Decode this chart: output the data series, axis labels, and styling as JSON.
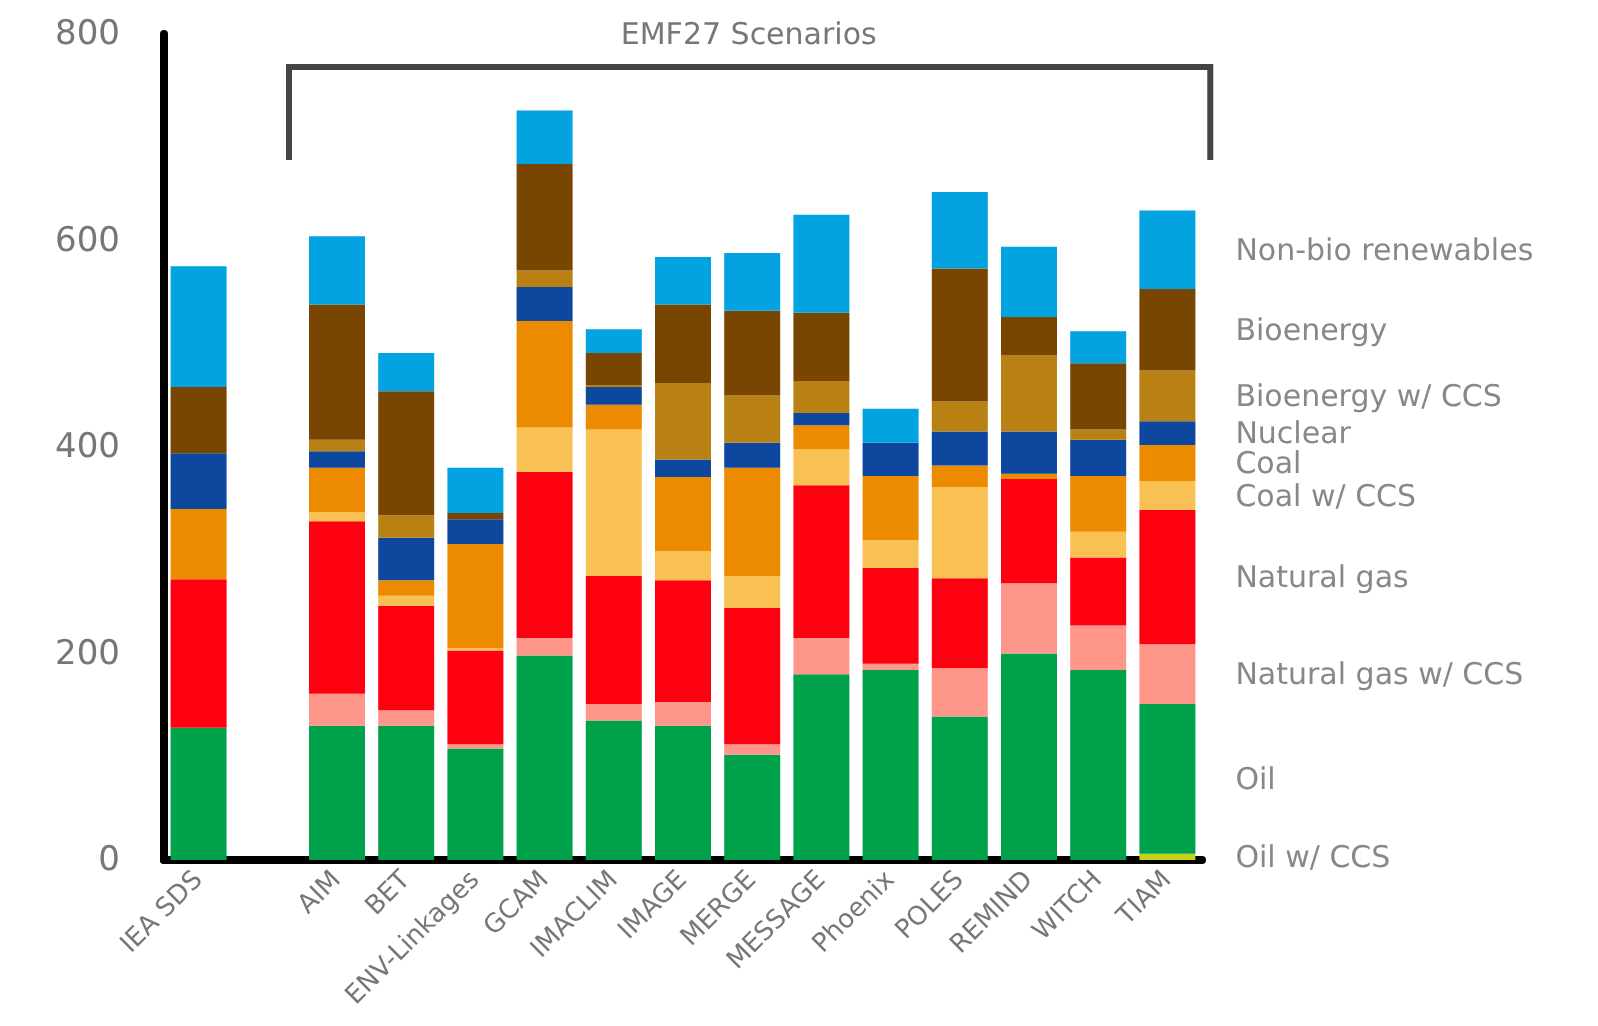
{
  "chart_data": {
    "type": "bar",
    "stacked": true,
    "categories": [
      "IEA SDS",
      null,
      "AIM",
      "BET",
      "ENV-Linkages",
      "GCAM",
      "IMACLIM",
      "IMAGE",
      "MERGE",
      "MESSAGE",
      "Phoenix",
      "POLES",
      "REMIND",
      "WITCH",
      "TIAM"
    ],
    "series": [
      {
        "name": "Oil w/ CCS",
        "color": "#c5d21a",
        "values": [
          0,
          null,
          0,
          0,
          0,
          0,
          0,
          0,
          0,
          0,
          0,
          0,
          0,
          0,
          6
        ]
      },
      {
        "name": "Oil",
        "color": "#00a14b",
        "values": [
          128,
          null,
          130,
          130,
          108,
          198,
          135,
          130,
          102,
          180,
          184,
          139,
          200,
          184,
          145
        ]
      },
      {
        "name": "Natural gas w/ CCS",
        "color": "#ff968a",
        "values": [
          0,
          null,
          31,
          15,
          4,
          17,
          16,
          23,
          10,
          35,
          6,
          47,
          68,
          43,
          58
        ]
      },
      {
        "name": "Natural gas",
        "color": "#ff0010",
        "values": [
          144,
          null,
          167,
          101,
          91,
          161,
          124,
          118,
          132,
          148,
          93,
          87,
          101,
          66,
          130
        ]
      },
      {
        "name": "Coal w/ CCS",
        "color": "#f9c053",
        "values": [
          0,
          null,
          9,
          10,
          2,
          43,
          142,
          28,
          31,
          35,
          27,
          88,
          0,
          25,
          28
        ]
      },
      {
        "name": "Coal",
        "color": "#ec8a00",
        "values": [
          68,
          null,
          43,
          15,
          101,
          103,
          24,
          72,
          105,
          23,
          62,
          21,
          5,
          54,
          35
        ]
      },
      {
        "name": "Nuclear",
        "color": "#0e479e",
        "values": [
          54,
          null,
          16,
          41,
          24,
          33,
          17,
          17,
          24,
          12,
          32,
          33,
          41,
          35,
          23
        ]
      },
      {
        "name": "Bioenergy w/ CCS",
        "color": "#b98013",
        "values": [
          0,
          null,
          11,
          22,
          0,
          16,
          2,
          74,
          46,
          31,
          0,
          29,
          74,
          10,
          49
        ]
      },
      {
        "name": "Bioenergy",
        "color": "#784600",
        "values": [
          64,
          null,
          131,
          120,
          6,
          103,
          31,
          76,
          82,
          66,
          0,
          129,
          37,
          64,
          79
        ]
      },
      {
        "name": "Non-bio renewables",
        "color": "#03a3e1",
        "values": [
          117,
          null,
          66,
          37,
          44,
          52,
          23,
          46,
          56,
          95,
          33,
          74,
          68,
          31,
          76
        ]
      }
    ],
    "ylim": [
      0,
      800
    ],
    "yticks": [
      0,
      200,
      400,
      600,
      800
    ],
    "annotations": [
      "EMF27 Scenarios"
    ]
  }
}
